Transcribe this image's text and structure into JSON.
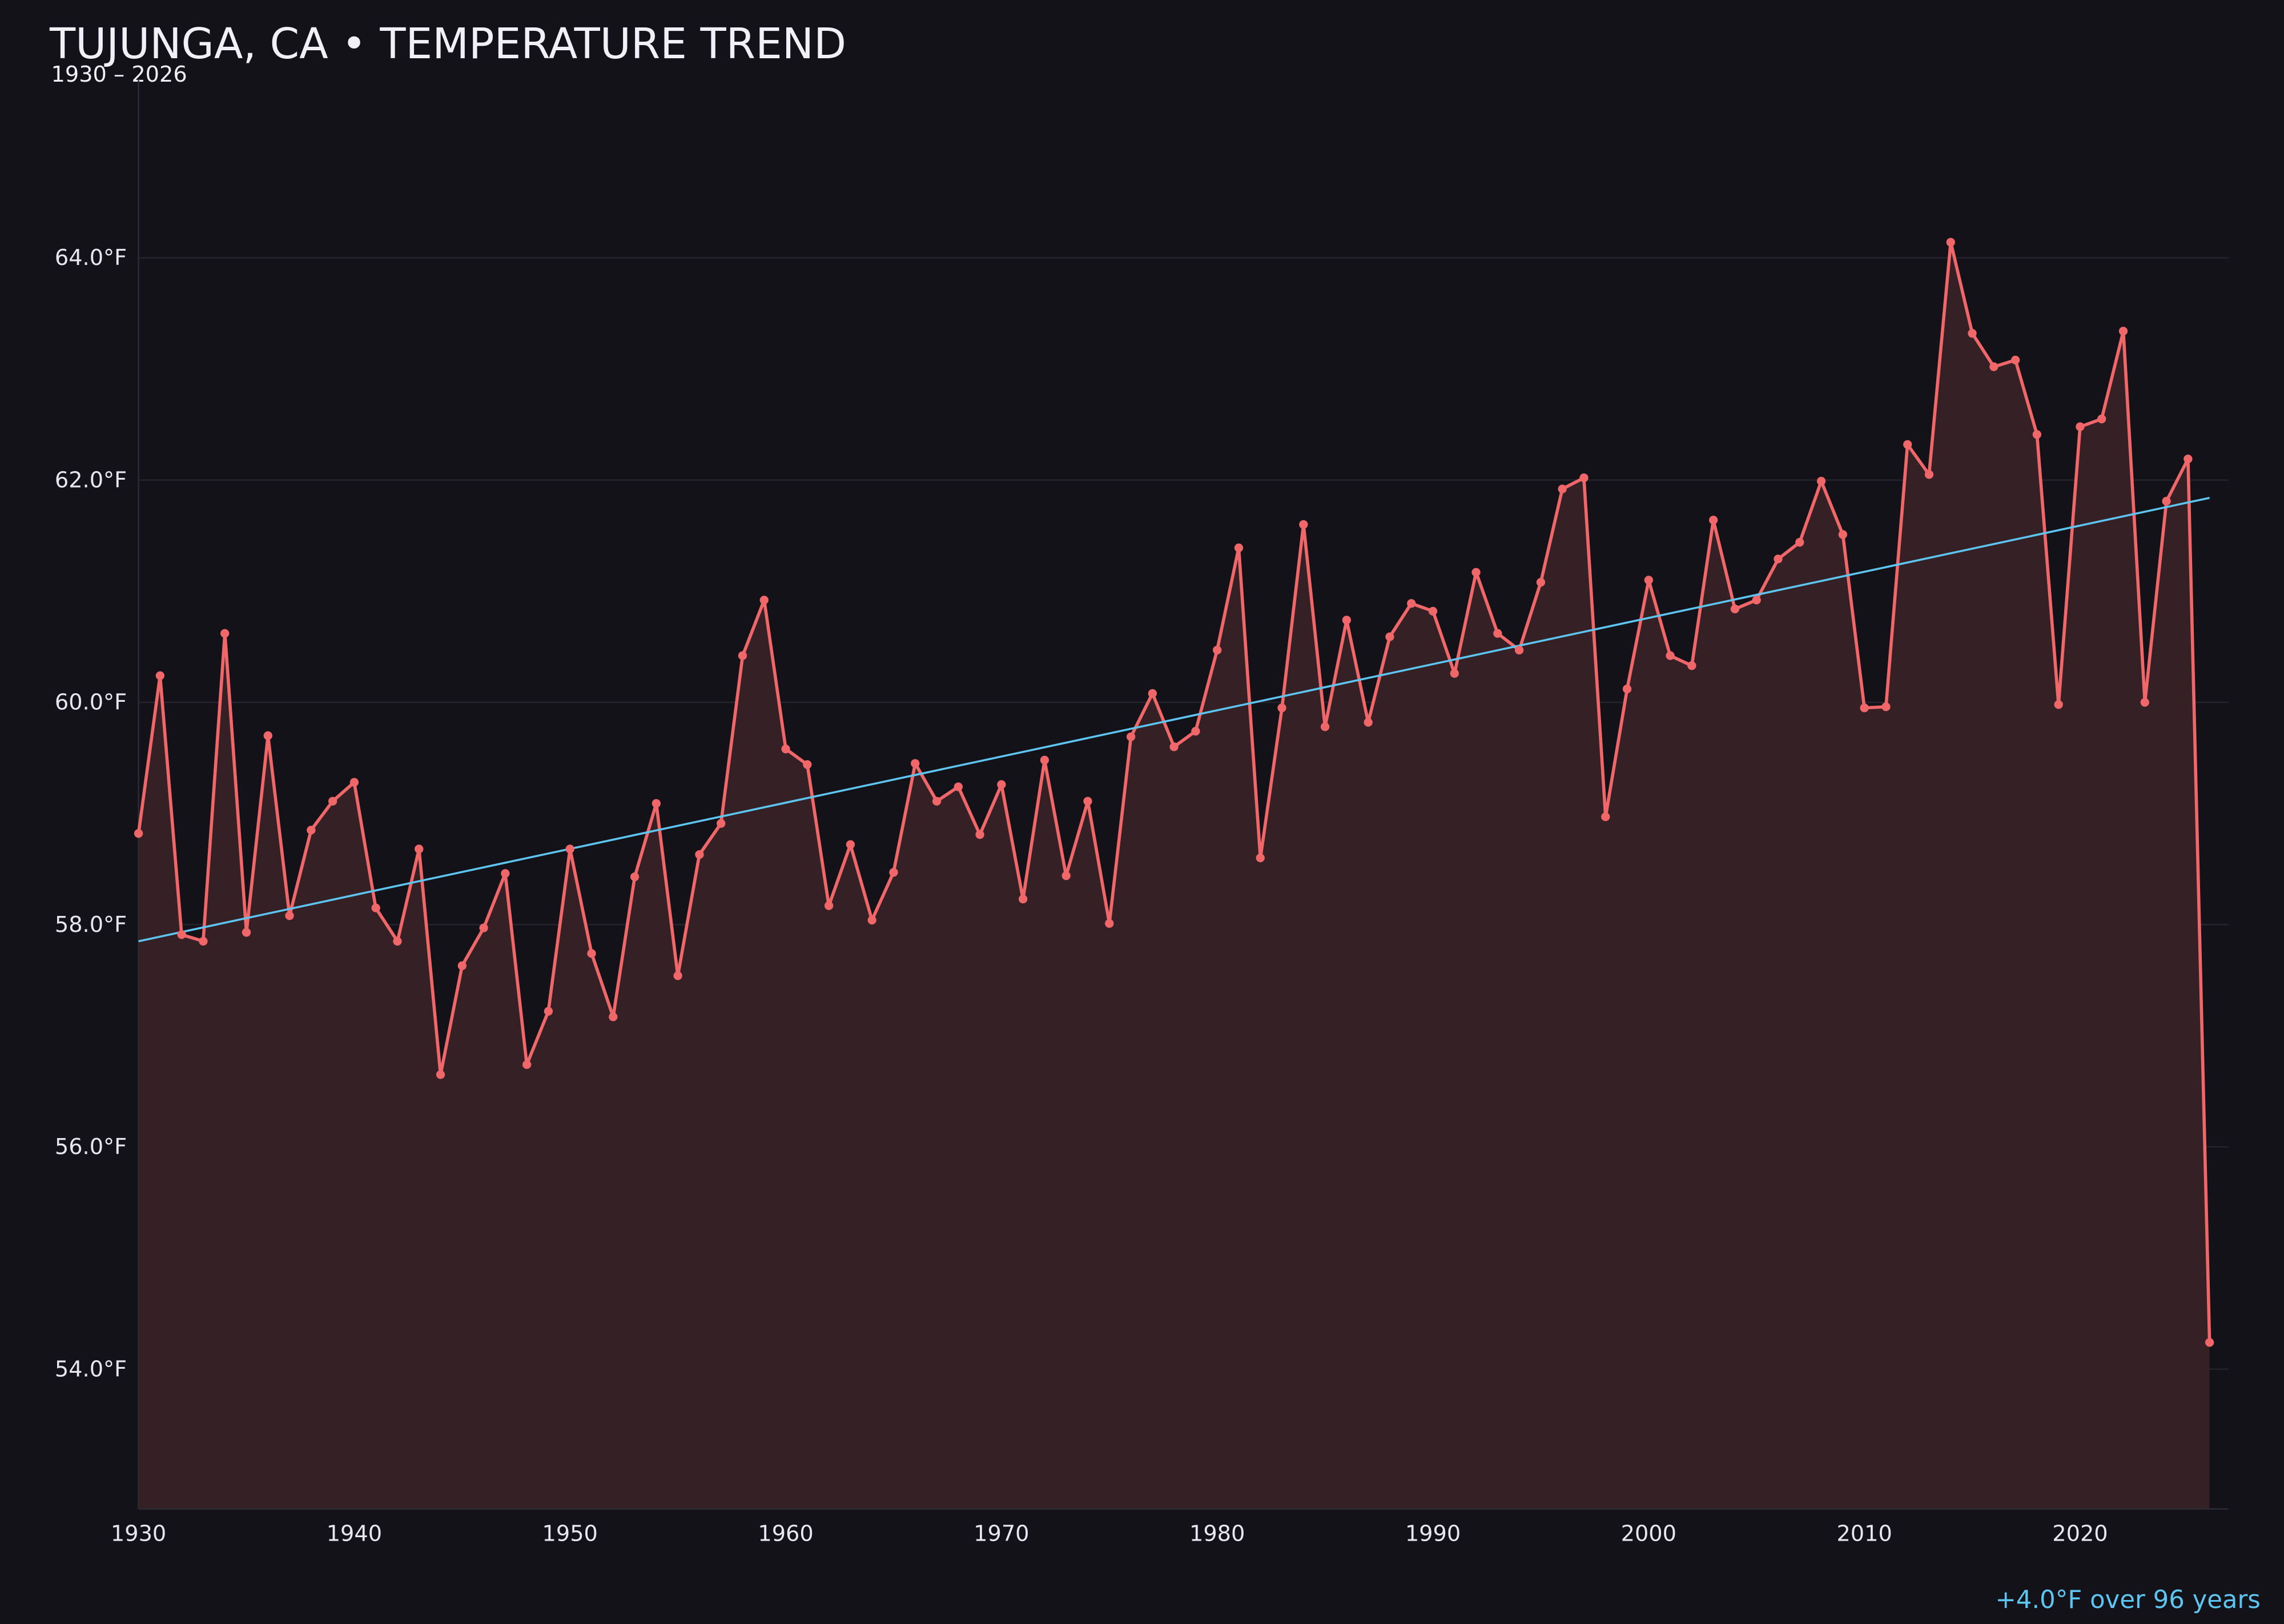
{
  "chart_data": {
    "type": "line",
    "title": "TUJUNGA, CA • TEMPERATURE TREND",
    "subtitle": "1930 – 2026",
    "xlabel": "",
    "ylabel": "",
    "xlim": [
      1930,
      2027
    ],
    "ylim": [
      52.74,
      65.6
    ],
    "x_ticks": [
      1930,
      1940,
      1950,
      1960,
      1970,
      1980,
      1990,
      2000,
      2010,
      2020
    ],
    "x_tick_labels": [
      "1930",
      "1940",
      "1950",
      "1960",
      "1970",
      "1980",
      "1990",
      "2000",
      "2010",
      "2020"
    ],
    "y_ticks": [
      54,
      56,
      58,
      60,
      62,
      64
    ],
    "y_tick_labels": [
      "54.0°F",
      "56.0°F",
      "58.0°F",
      "60.0°F",
      "62.0°F",
      "64.0°F"
    ],
    "grid": "horizontal",
    "x": [
      1930,
      1931,
      1932,
      1933,
      1934,
      1935,
      1936,
      1937,
      1938,
      1939,
      1940,
      1941,
      1942,
      1943,
      1944,
      1945,
      1946,
      1947,
      1948,
      1949,
      1950,
      1951,
      1952,
      1953,
      1954,
      1955,
      1956,
      1957,
      1958,
      1959,
      1960,
      1961,
      1962,
      1963,
      1964,
      1965,
      1966,
      1967,
      1968,
      1969,
      1970,
      1971,
      1972,
      1973,
      1974,
      1975,
      1976,
      1977,
      1978,
      1979,
      1980,
      1981,
      1982,
      1983,
      1984,
      1985,
      1986,
      1987,
      1988,
      1989,
      1990,
      1991,
      1992,
      1993,
      1994,
      1995,
      1996,
      1997,
      1998,
      1999,
      2000,
      2001,
      2002,
      2003,
      2004,
      2005,
      2006,
      2007,
      2008,
      2009,
      2010,
      2011,
      2012,
      2013,
      2014,
      2015,
      2016,
      2017,
      2018,
      2019,
      2020,
      2021,
      2022,
      2023,
      2024,
      2025,
      2026
    ],
    "series": [
      {
        "color": "#f0676a",
        "values": [
          58.82,
          60.24,
          57.91,
          57.85,
          60.62,
          57.93,
          59.7,
          58.08,
          58.85,
          59.11,
          59.28,
          58.15,
          57.85,
          58.68,
          56.65,
          57.63,
          57.97,
          58.46,
          56.74,
          57.22,
          58.68,
          57.74,
          57.17,
          58.43,
          59.09,
          57.54,
          58.63,
          58.91,
          60.42,
          60.92,
          59.58,
          59.44,
          58.17,
          58.72,
          58.04,
          58.47,
          59.45,
          59.11,
          59.24,
          58.81,
          59.26,
          58.23,
          59.48,
          58.44,
          59.11,
          58.01,
          59.69,
          60.08,
          59.6,
          59.74,
          60.47,
          61.39,
          58.6,
          59.95,
          61.6,
          59.78,
          60.74,
          59.82,
          60.59,
          60.89,
          60.82,
          60.26,
          61.17,
          60.62,
          60.47,
          61.08,
          61.92,
          62.02,
          58.97,
          60.12,
          61.1,
          60.42,
          60.33,
          61.64,
          60.84,
          60.92,
          61.29,
          61.44,
          61.99,
          61.51,
          59.95,
          59.96,
          62.32,
          62.05,
          64.14,
          63.32,
          63.02,
          63.08,
          62.41,
          59.98,
          62.48,
          62.55,
          63.34,
          60.0,
          61.81,
          62.19,
          54.24
        ]
      }
    ],
    "trend": {
      "color": "#5ec4f0",
      "start": [
        1930,
        57.85
      ],
      "end": [
        2026,
        61.84
      ]
    },
    "annotation": "+4.0°F over 96 years",
    "colors": {
      "background": "#131219",
      "fill": "#352026",
      "grid": "#24222a"
    }
  }
}
